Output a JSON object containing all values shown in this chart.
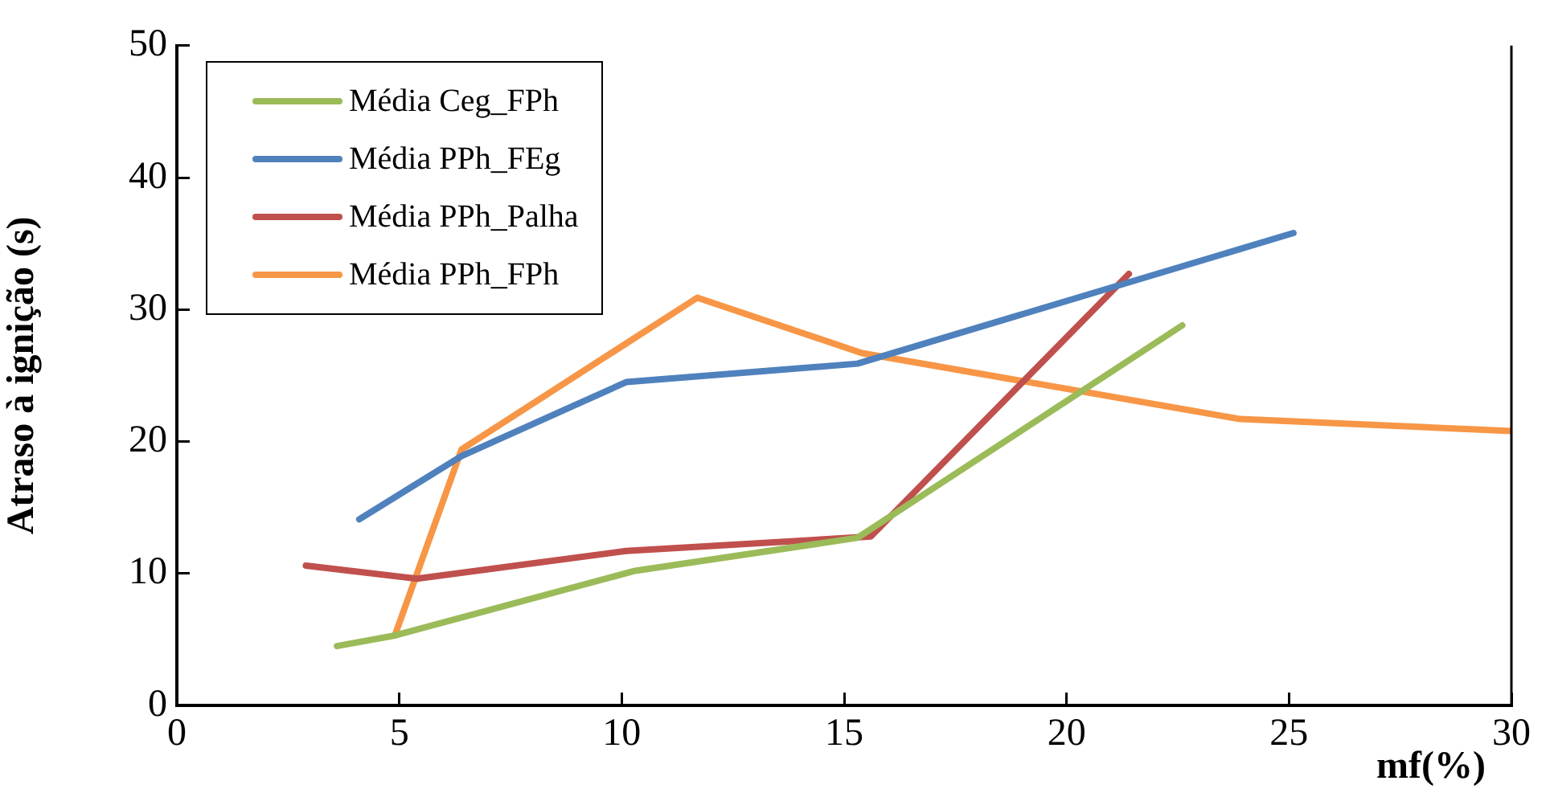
{
  "chart_data": {
    "type": "line",
    "xlabel": "mf(%)",
    "ylabel": "Atraso à ignição (s)",
    "xlim": [
      0,
      30
    ],
    "xticks": [
      0,
      5,
      10,
      15,
      20,
      25,
      30
    ],
    "ylim": [
      0,
      50
    ],
    "yticks": [
      0,
      10,
      20,
      30,
      40,
      50
    ],
    "grid": false,
    "legend": "top left",
    "marker": "none",
    "line_style": "solid",
    "series": [
      {
        "name": "Média Ceg_FPh",
        "color": "#9bbb59",
        "x": [
          3.6,
          4.9,
          10.3,
          15.3,
          22.6
        ],
        "values": [
          4.5,
          5.3,
          10.2,
          12.7,
          28.8
        ]
      },
      {
        "name": "Média PPh_FEg",
        "color": "#4f81bd",
        "x": [
          4.1,
          6.4,
          10.1,
          15.3,
          25.1
        ],
        "values": [
          14.1,
          18.9,
          24.5,
          25.9,
          35.8
        ]
      },
      {
        "name": "Média PPh_Palha",
        "color": "#c0504d",
        "x": [
          2.9,
          5.4,
          10.1,
          15.6,
          21.4
        ],
        "values": [
          10.6,
          9.6,
          11.7,
          12.8,
          32.7
        ]
      },
      {
        "name": "Média PPh_FPh",
        "color": "#f79646",
        "x": [
          4.9,
          6.4,
          11.7,
          15.4,
          23.9,
          30.0
        ],
        "values": [
          5.3,
          19.4,
          30.9,
          26.7,
          21.7,
          20.8
        ]
      }
    ]
  }
}
